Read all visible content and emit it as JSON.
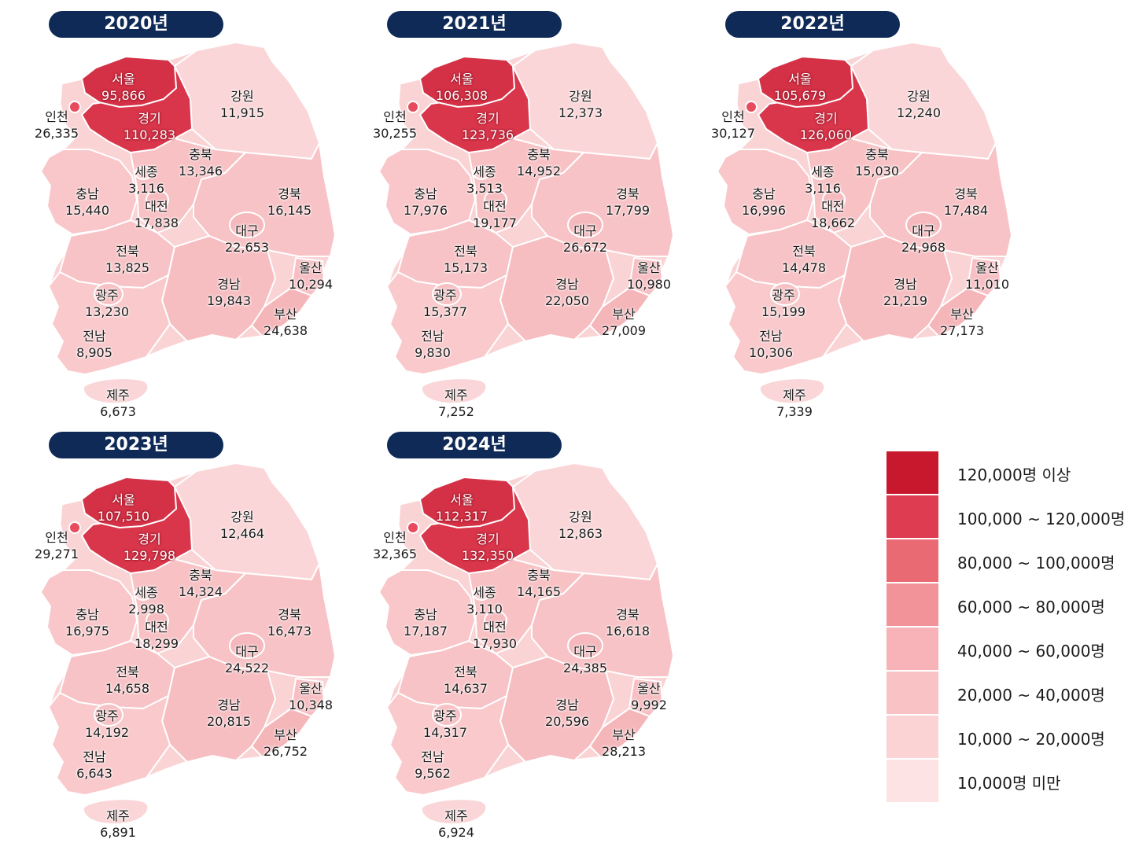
{
  "legend": [
    {
      "label": "120,000명 이상",
      "color": "#c8182d"
    },
    {
      "label": "100,000 ~ 120,000명",
      "color": "#de3c50"
    },
    {
      "label": "80,000 ~ 100,000명",
      "color": "#ea6a74"
    },
    {
      "label": "60,000 ~ 80,000명",
      "color": "#f19399"
    },
    {
      "label": "40,000 ~ 60,000명",
      "color": "#f7b3b7"
    },
    {
      "label": "20,000 ~ 40,000명",
      "color": "#f9c3c6"
    },
    {
      "label": "10,000 ~ 20,000명",
      "color": "#fbd3d5"
    },
    {
      "label": "10,000명 미만",
      "color": "#fde3e4"
    }
  ],
  "regions": [
    {
      "key": "seoul",
      "name": "서울"
    },
    {
      "key": "gyeonggi",
      "name": "경기"
    },
    {
      "key": "incheon",
      "name": "인천"
    },
    {
      "key": "gangwon",
      "name": "강원"
    },
    {
      "key": "chungbuk",
      "name": "충북"
    },
    {
      "key": "sejong",
      "name": "세종"
    },
    {
      "key": "chungnam",
      "name": "충남"
    },
    {
      "key": "daejeon",
      "name": "대전"
    },
    {
      "key": "gyeongbuk",
      "name": "경북"
    },
    {
      "key": "daegu",
      "name": "대구"
    },
    {
      "key": "jeonbuk",
      "name": "전북"
    },
    {
      "key": "ulsan",
      "name": "울산"
    },
    {
      "key": "gwangju",
      "name": "광주"
    },
    {
      "key": "gyeongnam",
      "name": "경남"
    },
    {
      "key": "busan",
      "name": "부산"
    },
    {
      "key": "jeonnam",
      "name": "전남"
    },
    {
      "key": "jeju",
      "name": "제주"
    }
  ],
  "years": [
    {
      "title": "2020년",
      "values": {
        "seoul": "95,866",
        "gyeonggi": "110,283",
        "incheon": "26,335",
        "gangwon": "11,915",
        "chungbuk": "13,346",
        "sejong": "3,116",
        "chungnam": "15,440",
        "daejeon": "17,838",
        "gyeongbuk": "16,145",
        "daegu": "22,653",
        "jeonbuk": "13,825",
        "ulsan": "10,294",
        "gwangju": "13,230",
        "gyeongnam": "19,843",
        "busan": "24,638",
        "jeonnam": "8,905",
        "jeju": "6,673"
      }
    },
    {
      "title": "2021년",
      "values": {
        "seoul": "106,308",
        "gyeonggi": "123,736",
        "incheon": "30,255",
        "gangwon": "12,373",
        "chungbuk": "14,952",
        "sejong": "3,513",
        "chungnam": "17,976",
        "daejeon": "19,177",
        "gyeongbuk": "17,799",
        "daegu": "26,672",
        "jeonbuk": "15,173",
        "ulsan": "10,980",
        "gwangju": "15,377",
        "gyeongnam": "22,050",
        "busan": "27,009",
        "jeonnam": "9,830",
        "jeju": "7,252"
      }
    },
    {
      "title": "2022년",
      "values": {
        "seoul": "105,679",
        "gyeonggi": "126,060",
        "incheon": "30,127",
        "gangwon": "12,240",
        "chungbuk": "15,030",
        "sejong": "3,116",
        "chungnam": "16,996",
        "daejeon": "18,662",
        "gyeongbuk": "17,484",
        "daegu": "24,968",
        "jeonbuk": "14,478",
        "ulsan": "11,010",
        "gwangju": "15,199",
        "gyeongnam": "21,219",
        "busan": "27,173",
        "jeonnam": "10,306",
        "jeju": "7,339"
      }
    },
    {
      "title": "2023년",
      "values": {
        "seoul": "107,510",
        "gyeonggi": "129,798",
        "incheon": "29,271",
        "gangwon": "12,464",
        "chungbuk": "14,324",
        "sejong": "2,998",
        "chungnam": "16,975",
        "daejeon": "18,299",
        "gyeongbuk": "16,473",
        "daegu": "24,522",
        "jeonbuk": "14,658",
        "ulsan": "10,348",
        "gwangju": "14,192",
        "gyeongnam": "20,815",
        "busan": "26,752",
        "jeonnam": "6,643",
        "jeju": "6,891"
      }
    },
    {
      "title": "2024년",
      "values": {
        "seoul": "112,317",
        "gyeonggi": "132,350",
        "incheon": "32,365",
        "gangwon": "12,863",
        "chungbuk": "14,165",
        "sejong": "3,110",
        "chungnam": "17,187",
        "daejeon": "17,930",
        "gyeongbuk": "16,618",
        "daegu": "24,385",
        "jeonbuk": "14,637",
        "ulsan": "9,992",
        "gwangju": "14,317",
        "gyeongnam": "20,596",
        "busan": "28,213",
        "jeonnam": "9,562",
        "jeju": "6,924"
      }
    }
  ]
}
